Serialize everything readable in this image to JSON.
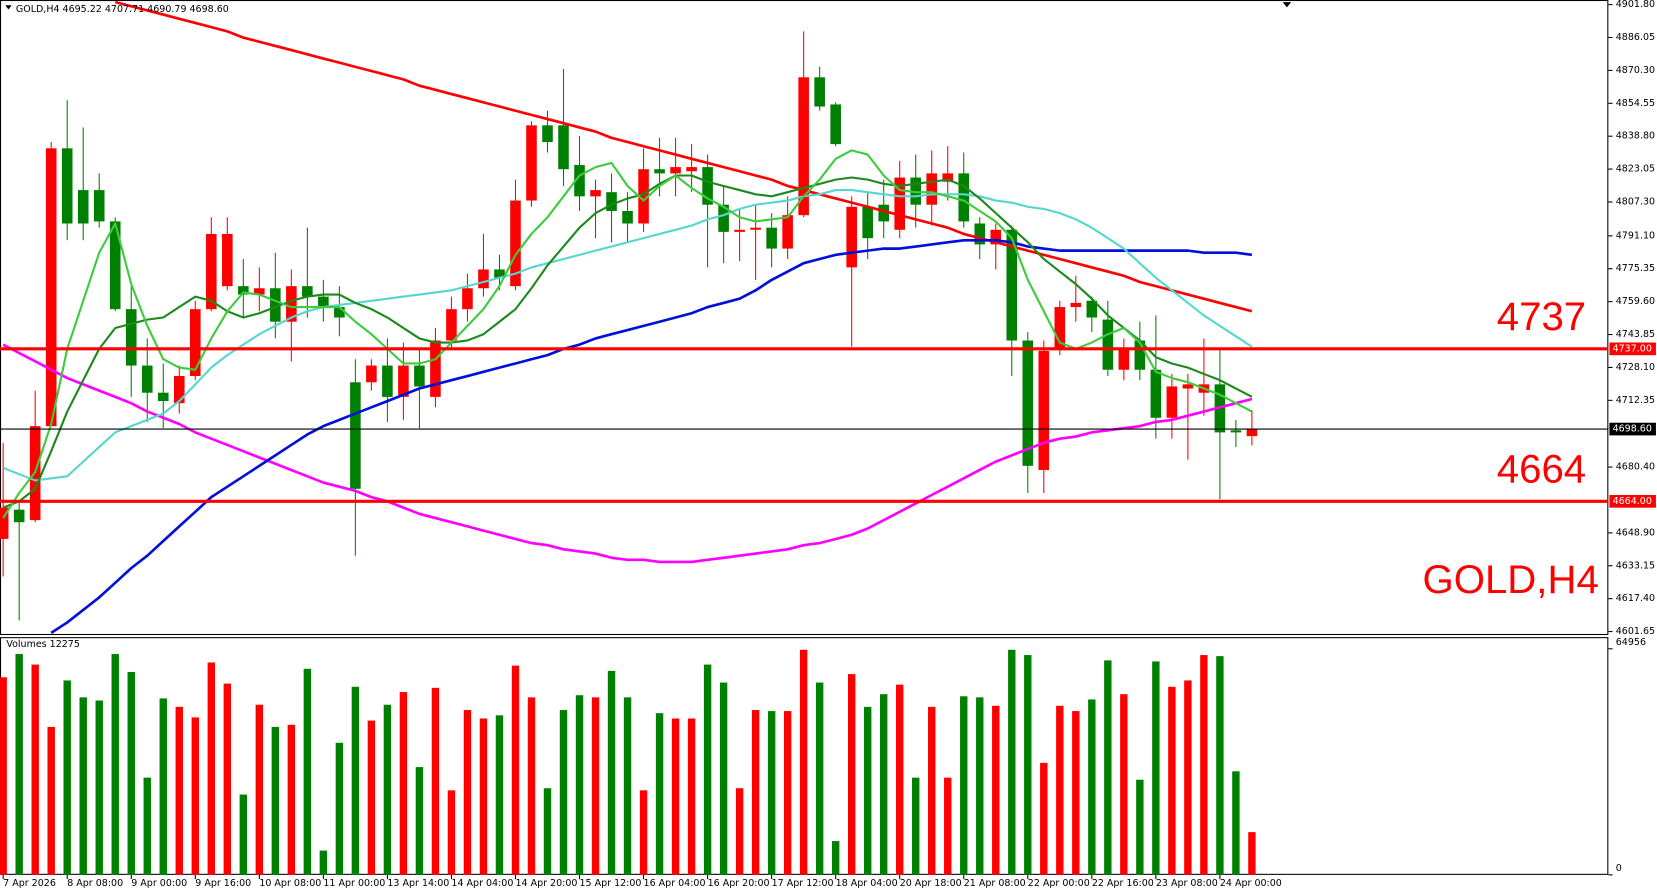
{
  "chart_data": {
    "type": "candlestick",
    "header": "GOLD,H4  4695.22 4707.71 4690.79 4698.60",
    "symbol_label": "GOLD,H4",
    "up_color": "#ff0000",
    "down_color": "#008000",
    "categories": [
      "7 Apr 2026",
      null,
      null,
      null,
      "8 Apr 08:00",
      null,
      null,
      null,
      "9 Apr 00:00",
      null,
      null,
      null,
      "9 Apr 16:00",
      null,
      null,
      null,
      "10 Apr 08:00",
      null,
      null,
      null,
      "11 Apr 00:00",
      null,
      null,
      null,
      "13 Apr 14:00",
      null,
      null,
      null,
      "14 Apr 04:00",
      null,
      null,
      null,
      "14 Apr 20:00",
      null,
      null,
      null,
      "15 Apr 12:00",
      null,
      null,
      null,
      "16 Apr 04:00",
      null,
      null,
      null,
      "16 Apr 20:00",
      null,
      null,
      null,
      "17 Apr 12:00",
      null,
      null,
      null,
      "18 Apr 04:00",
      null,
      null,
      null,
      "20 Apr 18:00",
      null,
      null,
      null,
      "21 Apr 08:00",
      null,
      null,
      null,
      "22 Apr 00:00",
      null,
      null,
      null,
      "22 Apr 16:00",
      null,
      null,
      null,
      "23 Apr 08:00",
      null,
      null,
      null,
      "24 Apr 00:00",
      null,
      null
    ],
    "open": [
      4646,
      4660,
      4655,
      4700,
      4833,
      4813,
      4813,
      4798,
      4756,
      4729,
      4716,
      4711,
      4724,
      4756,
      4767,
      4767,
      4763,
      4766,
      4750,
      4767,
      4762,
      4757,
      4721,
      4721,
      4729,
      4714,
      4729,
      4714,
      4741,
      4756,
      4766,
      4775,
      4767,
      4808,
      4844,
      4844,
      4825,
      4810,
      4812,
      4803,
      4797,
      4823,
      4821,
      4822,
      4824,
      4806,
      4793,
      4794,
      4795,
      4785,
      4801,
      4867,
      4854,
      4776,
      4805,
      4806,
      4794,
      4819,
      4806,
      4817,
      4821,
      4797,
      4787,
      4794,
      4741,
      4679,
      4737,
      4757,
      4760,
      4751,
      4727,
      4741,
      4727,
      4704,
      4718,
      4716,
      4720,
      4698,
      4695.22
    ],
    "high": [
      4692,
      4664,
      4717,
      4836,
      4856,
      4843,
      4821,
      4800,
      4767,
      4742,
      4730,
      4729,
      4760,
      4800,
      4800,
      4780,
      4776,
      4783,
      4775,
      4795,
      4770,
      4767,
      4732,
      4732,
      4742,
      4740,
      4737,
      4747,
      4762,
      4773,
      4792,
      4782,
      4818,
      4846,
      4851,
      4871,
      4839,
      4818,
      4821,
      4812,
      4833,
      4838,
      4838,
      4835,
      4830,
      4815,
      4804,
      4806,
      4802,
      4810,
      4889,
      4872,
      4855,
      4810,
      4812,
      4818,
      4827,
      4830,
      4832,
      4834,
      4831,
      4800,
      4797,
      4796,
      4745,
      4741,
      4760,
      4772,
      4762,
      4760,
      4742,
      4750,
      4753,
      4725,
      4725,
      4742,
      4737,
      4703,
      4707.71
    ],
    "low": [
      4628,
      4607,
      4654,
      4700,
      4789,
      4789,
      4795,
      4755,
      4714,
      4702,
      4699,
      4706,
      4722,
      4755,
      4765,
      4752,
      4755,
      4742,
      4731,
      4752,
      4750,
      4743,
      4638,
      4717,
      4702,
      4703,
      4699,
      4709,
      4737,
      4750,
      4762,
      4765,
      4765,
      4805,
      4831,
      4815,
      4803,
      4790,
      4788,
      4788,
      4793,
      4810,
      4810,
      4812,
      4776,
      4778,
      4779,
      4770,
      4776,
      4780,
      4800,
      4851,
      4834,
      4738,
      4780,
      4790,
      4790,
      4795,
      4796,
      4808,
      4795,
      4780,
      4775,
      4724,
      4668,
      4668,
      4734,
      4750,
      4745,
      4724,
      4722,
      4722,
      4694,
      4694,
      4684,
      4705,
      4665,
      4690,
      4690.79
    ],
    "close": [
      4661,
      4654,
      4700,
      4833,
      4797,
      4797,
      4798,
      4756,
      4729,
      4716,
      4712,
      4724,
      4756,
      4792,
      4792,
      4763,
      4766,
      4750,
      4767,
      4762,
      4757,
      4752,
      4670,
      4729,
      4714,
      4729,
      4719,
      4741,
      4756,
      4766,
      4775,
      4771,
      4808,
      4844,
      4836,
      4823,
      4810,
      4813,
      4803,
      4797,
      4823,
      4821,
      4824,
      4824,
      4806,
      4793,
      4794,
      4795,
      4785,
      4801,
      4867,
      4853,
      4835,
      4805,
      4790,
      4798,
      4819,
      4806,
      4821,
      4821,
      4798,
      4787,
      4794,
      4741,
      4681,
      4736,
      4757,
      4759,
      4752,
      4727,
      4737,
      4727,
      4704,
      4719,
      4720,
      4720,
      4697,
      4697,
      4698.6
    ],
    "ylim": [
      4600,
      4904
    ],
    "yticks": [
      {
        "value": 4901.8,
        "label": "4901.80"
      },
      {
        "value": 4886.05,
        "label": "4886.05"
      },
      {
        "value": 4870.3,
        "label": "4870.30"
      },
      {
        "value": 4854.55,
        "label": "4854.55"
      },
      {
        "value": 4838.8,
        "label": "4838.80"
      },
      {
        "value": 4823.05,
        "label": "4823.05"
      },
      {
        "value": 4807.3,
        "label": "4807.30"
      },
      {
        "value": 4791.1,
        "label": "4791.10"
      },
      {
        "value": 4775.35,
        "label": "4775.35"
      },
      {
        "value": 4759.6,
        "label": "4759.60"
      },
      {
        "value": 4743.85,
        "label": "4743.85"
      },
      {
        "value": 4728.1,
        "label": "4728.10"
      },
      {
        "value": 4712.35,
        "label": "4712.35"
      },
      {
        "value": 4680.4,
        "label": "4680.40"
      },
      {
        "value": 4648.9,
        "label": "4648.90"
      },
      {
        "value": 4633.15,
        "label": "4633.15"
      },
      {
        "value": 4617.4,
        "label": "4617.40"
      },
      {
        "value": 4601.65,
        "label": "4601.65"
      }
    ],
    "levels": [
      {
        "value": 4737,
        "label": "4737.00",
        "color": "#ff0000"
      },
      {
        "value": 4664,
        "label": "4664.00",
        "color": "#ff0000"
      }
    ],
    "price_line": {
      "value": 4698.6,
      "label": "4698.60",
      "color": "#000000"
    },
    "indicators": [
      {
        "color": "#ff0000",
        "width": 2.5,
        "values": [
          null,
          null,
          null,
          null,
          null,
          null,
          null,
          4903,
          4901,
          4899,
          4897,
          4895,
          4893,
          4891,
          4889,
          4886,
          4884,
          4882,
          4880,
          4878,
          4876,
          4874,
          4872,
          4870,
          4868,
          4866,
          4863,
          4861,
          4859,
          4857,
          4855,
          4853,
          4851,
          4849,
          4847,
          4845,
          4843,
          4841,
          4838,
          4836,
          4834,
          4832,
          4830,
          4828,
          4826,
          4824,
          4822,
          4820,
          4818,
          4815,
          4813,
          4811,
          4809,
          4807,
          4805,
          4803,
          4801,
          4799,
          4797,
          4795,
          4792,
          4790,
          4788,
          4786,
          4784,
          4782,
          4780,
          4778,
          4776,
          4774,
          4772,
          4769,
          4767,
          4765,
          4763,
          4761,
          4759,
          4757,
          4755
        ]
      },
      {
        "color": "#ff00ff",
        "width": 2.5,
        "values": [
          4739,
          4735,
          4731,
          4727,
          4723,
          4720,
          4717,
          4714,
          4711,
          4707,
          4704,
          4701,
          4697,
          4694,
          4691,
          4688,
          4685,
          4682,
          4679,
          4676,
          4673,
          4671,
          4669,
          4666,
          4664,
          4661,
          4658,
          4656,
          4654,
          4652,
          4650,
          4648,
          4646,
          4644,
          4643,
          4641,
          4640,
          4639,
          4637,
          4636,
          4636,
          4635,
          4635,
          4635,
          4636,
          4637,
          4638,
          4639,
          4640,
          4641,
          4643,
          4644,
          4646,
          4648,
          4651,
          4655,
          4659,
          4663,
          4667,
          4671,
          4675,
          4679,
          4683,
          4686,
          4689,
          4692,
          4694,
          4695,
          4697,
          4698,
          4699,
          4700,
          4702,
          4703,
          4705,
          4707,
          4709,
          4711,
          4713
        ]
      },
      {
        "color": "#0010d8",
        "width": 2.5,
        "values": [
          null,
          null,
          null,
          4601,
          4606,
          4612,
          4618,
          4625,
          4632,
          4638,
          4645,
          4652,
          4659,
          4666,
          4671,
          4676,
          4681,
          4686,
          4691,
          4696,
          4700,
          4703,
          4706,
          4709,
          4712,
          4715,
          4718,
          4720,
          4722,
          4724,
          4726,
          4728,
          4730,
          4732,
          4734,
          4737,
          4739,
          4742,
          4744,
          4746,
          4748,
          4750,
          4752,
          4754,
          4757,
          4759,
          4761,
          4765,
          4770,
          4774,
          4778,
          4780,
          4782,
          4783,
          4784,
          4785,
          4785,
          4786,
          4787,
          4788,
          4789,
          4789,
          4789,
          4788,
          4786,
          4785,
          4784,
          4784,
          4784,
          4784,
          4784,
          4784,
          4784,
          4784,
          4784,
          4783,
          4783,
          4783,
          4782
        ]
      },
      {
        "color": "#55d6cf",
        "width": 2,
        "values": [
          4680,
          4677,
          4674,
          4675,
          4676,
          4683,
          4690,
          4697,
          4700,
          4703,
          4706,
          4712,
          4720,
          4728,
          4734,
          4739,
          4744,
          4748,
          4752,
          4755,
          4757,
          4758,
          4759,
          4760,
          4761,
          4762,
          4763,
          4764,
          4765,
          4767,
          4769,
          4771,
          4773,
          4776,
          4778,
          4780,
          4782,
          4784,
          4786,
          4788,
          4790,
          4792,
          4794,
          4796,
          4799,
          4801,
          4804,
          4806,
          4807,
          4808,
          4810,
          4811,
          4813,
          4813,
          4812,
          4811,
          4810,
          4810,
          4811,
          4811,
          4811,
          4810,
          4808,
          4807,
          4805,
          4804,
          4802,
          4799,
          4795,
          4790,
          4785,
          4778,
          4771,
          4765,
          4759,
          4753,
          4748,
          4743,
          4738
        ]
      },
      {
        "color": "#1b8a1b",
        "width": 2,
        "values": [
          4661,
          4664,
          4670,
          4688,
          4707,
          4722,
          4737,
          4747,
          4749,
          4751,
          4752,
          4757,
          4762,
          4760,
          4755,
          4752,
          4754,
          4757,
          4760,
          4762,
          4763,
          4763,
          4759,
          4756,
          4752,
          4747,
          4742,
          4740,
          4740,
          4741,
          4744,
          4750,
          4756,
          4766,
          4777,
          4786,
          4795,
          4802,
          4806,
          4809,
          4811,
          4816,
          4820,
          4820,
          4817,
          4815,
          4813,
          4811,
          4810,
          4812,
          4814,
          4816,
          4818,
          4819,
          4818,
          4816,
          4815,
          4816,
          4817,
          4818,
          4815,
          4809,
          4802,
          4795,
          4788,
          4780,
          4774,
          4768,
          4761,
          4753,
          4747,
          4741,
          4733,
          4730,
          4728,
          4725,
          4722,
          4718,
          4714
        ]
      },
      {
        "color": "#3ccc3c",
        "width": 2,
        "values": [
          4656,
          4668,
          4678,
          4701,
          4737,
          4760,
          4783,
          4797,
          4768,
          4748,
          4732,
          4728,
          4727,
          4742,
          4755,
          4764,
          4763,
          4760,
          4757,
          4757,
          4757,
          4757,
          4750,
          4744,
          4737,
          4730,
          4730,
          4732,
          4740,
          4748,
          4756,
          4767,
          4782,
          4792,
          4800,
          4810,
          4820,
          4824,
          4826,
          4815,
          4808,
          4815,
          4820,
          4814,
          4809,
          4805,
          4800,
          4798,
          4799,
          4800,
          4810,
          4818,
          4828,
          4832,
          4830,
          4820,
          4813,
          4812,
          4812,
          4810,
          4808,
          4803,
          4798,
          4790,
          4770,
          4755,
          4740,
          4737,
          4740,
          4744,
          4747,
          4740,
          4726,
          4723,
          4721,
          4718,
          4715,
          4711,
          4707
        ]
      }
    ],
    "volume": {
      "title": "Volumes 12275",
      "values": [
        56770,
        63452,
        60416,
        42504,
        55862,
        51005,
        50094,
        63452,
        58291,
        27931,
        50701,
        48272,
        45236,
        61024,
        54952,
        23074,
        48880,
        42504,
        43111,
        59202,
        6983,
        37950,
        54041,
        44326,
        48880,
        52523,
        30967,
        53737,
        24288,
        47362,
        44933,
        45844,
        60113,
        51005,
        24895,
        47362,
        51612,
        51005,
        58595,
        51005,
        24288,
        46451,
        44933,
        44933,
        60416,
        55255,
        24895,
        47362,
        47058,
        47058,
        64667,
        55255,
        9715,
        57684,
        48272,
        51916,
        54648,
        27931,
        48272,
        27931,
        51308,
        51005,
        48576,
        64667,
        63149,
        32182,
        48576,
        47058,
        50398,
        61631,
        51916,
        27324,
        61327,
        54041,
        55862,
        63149,
        62845,
        29753,
        12275
      ],
      "ylim": [
        0,
        68000
      ],
      "yticks": [
        0,
        64956
      ]
    }
  }
}
